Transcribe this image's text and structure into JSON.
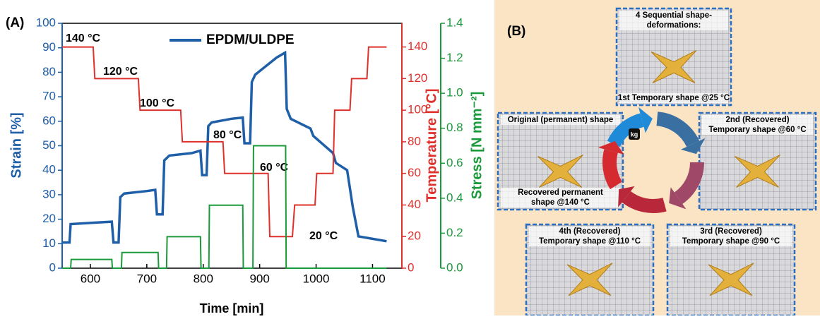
{
  "chart_data": {
    "type": "line",
    "label": "(A)",
    "xlabel": "Time [min]",
    "ylabel": "Strain [%]",
    "y2label": "Temperature [°C]",
    "y3label": "Stress [N mm⁻²]",
    "xlim": [
      550,
      1152
    ],
    "xticks": [
      600,
      700,
      800,
      900,
      1000,
      1100
    ],
    "ylim": [
      0,
      100
    ],
    "yticks": [
      0,
      10,
      20,
      30,
      40,
      50,
      60,
      70,
      80,
      90,
      100
    ],
    "y2lim": [
      0,
      155
    ],
    "y2ticks": [
      0,
      20,
      40,
      60,
      80,
      100,
      120,
      140
    ],
    "y3lim": [
      0,
      1.4
    ],
    "y3ticks": [
      {
        "value": 0,
        "label": "0.0"
      },
      0.2,
      0.4,
      0.6,
      0.8,
      {
        "value": 1,
        "label": "1.0"
      },
      1.2,
      1.4
    ],
    "series": [
      {
        "name": "EPDM/ULDPE",
        "color": "#1f5fa8",
        "axis": "y",
        "x": [
          550,
          563,
          565,
          638,
          641,
          650,
          653,
          660,
          700,
          715,
          718,
          728,
          731,
          740,
          780,
          795,
          798,
          806,
          809,
          815,
          850,
          870,
          873,
          883,
          886,
          892,
          930,
          945,
          948,
          955,
          990,
          995,
          1000,
          1030,
          1035,
          1055,
          1065,
          1075,
          1100,
          1125
        ],
        "values": [
          10.5,
          10.5,
          18,
          19,
          10.5,
          10.5,
          29,
          30.5,
          31.5,
          32,
          22,
          22,
          44,
          46,
          47,
          48,
          38,
          38,
          58,
          59.5,
          61,
          61.5,
          51,
          51,
          76,
          79,
          86,
          88,
          65,
          61,
          57,
          54,
          53,
          47,
          43,
          40,
          25,
          13,
          12,
          11
        ]
      },
      {
        "color": "#e0302c",
        "axis": "y2",
        "x": [
          550,
          605,
          608,
          685,
          688,
          760,
          763,
          835,
          838,
          915,
          918,
          958,
          962,
          998,
          1001,
          1030,
          1033,
          1060,
          1063,
          1090,
          1093,
          1125
        ],
        "values": [
          140,
          140,
          120,
          120,
          100,
          100,
          80,
          80,
          60,
          60,
          20,
          20,
          40,
          40,
          60,
          60,
          100,
          100,
          120,
          120,
          140,
          140
        ]
      },
      {
        "color": "#1a9a3a",
        "axis": "y3",
        "x": [
          550,
          565,
          566,
          638,
          639,
          655,
          656,
          720,
          721,
          735,
          736,
          795,
          796,
          810,
          811,
          870,
          871,
          888,
          889,
          946,
          947,
          1125
        ],
        "values": [
          0,
          0,
          0.05,
          0.05,
          0,
          0,
          0.09,
          0.09,
          0,
          0,
          0.18,
          0.18,
          0,
          0,
          0.36,
          0.36,
          0,
          0,
          0.7,
          0.7,
          0,
          0
        ]
      }
    ],
    "annotations": [
      "140 °C",
      "120 °C",
      "100 °C",
      "80 °C",
      "60 °C",
      "20 °C"
    ]
  },
  "panel_b": {
    "label": "(B)",
    "weight_label": "kg",
    "photos": [
      {
        "top": [
          "4 Sequential shape-",
          "deformations:"
        ],
        "bottom": [
          "1st Temporary shape @25 °C"
        ]
      },
      {
        "top": [
          "Original (permanent) shape"
        ],
        "bottom": [
          "Recovered permanent",
          "shape @140 °C"
        ]
      },
      {
        "top": [
          "2nd (Recovered)",
          "Temporary shape @60 °C"
        ]
      },
      {
        "top": [
          "4th (Recovered)",
          "Temporary shape @110 °C"
        ]
      },
      {
        "top": [
          "3rd (Recovered)",
          "Temporary shape @90 °C"
        ]
      }
    ]
  }
}
